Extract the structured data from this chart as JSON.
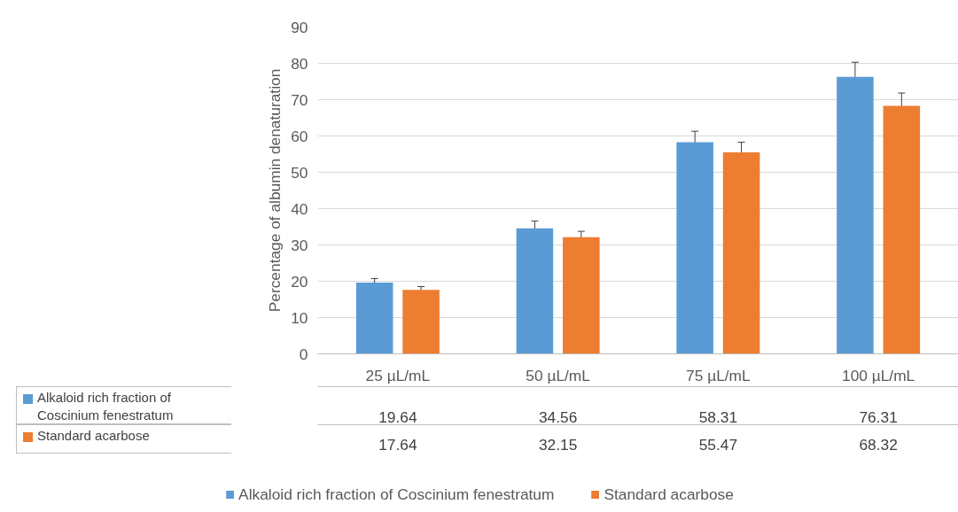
{
  "chart_data": {
    "type": "bar",
    "ylabel": "Percentage of albumin denaturation",
    "categories": [
      "25 µL/mL",
      "50 µL/mL",
      "75 µL/mL",
      "100 µL/mL"
    ],
    "series": [
      {
        "name": "Alkaloid rich fraction of Coscinium fenestratum",
        "color": "#5b9bd5",
        "values": [
          19.64,
          34.56,
          58.31,
          76.31
        ],
        "errors": [
          1.1,
          2,
          3,
          4
        ]
      },
      {
        "name": "Standard acarbose",
        "color": "#ed7d31",
        "values": [
          17.64,
          32.15,
          55.47,
          68.32
        ],
        "errors": [
          0.9,
          1.6,
          2.8,
          3.5
        ]
      }
    ],
    "ylim": [
      0,
      90
    ],
    "yticks": [
      0,
      10,
      20,
      30,
      40,
      50,
      60,
      70,
      80,
      90
    ],
    "grid": "y",
    "legend": "bottom",
    "data_labels": true
  }
}
